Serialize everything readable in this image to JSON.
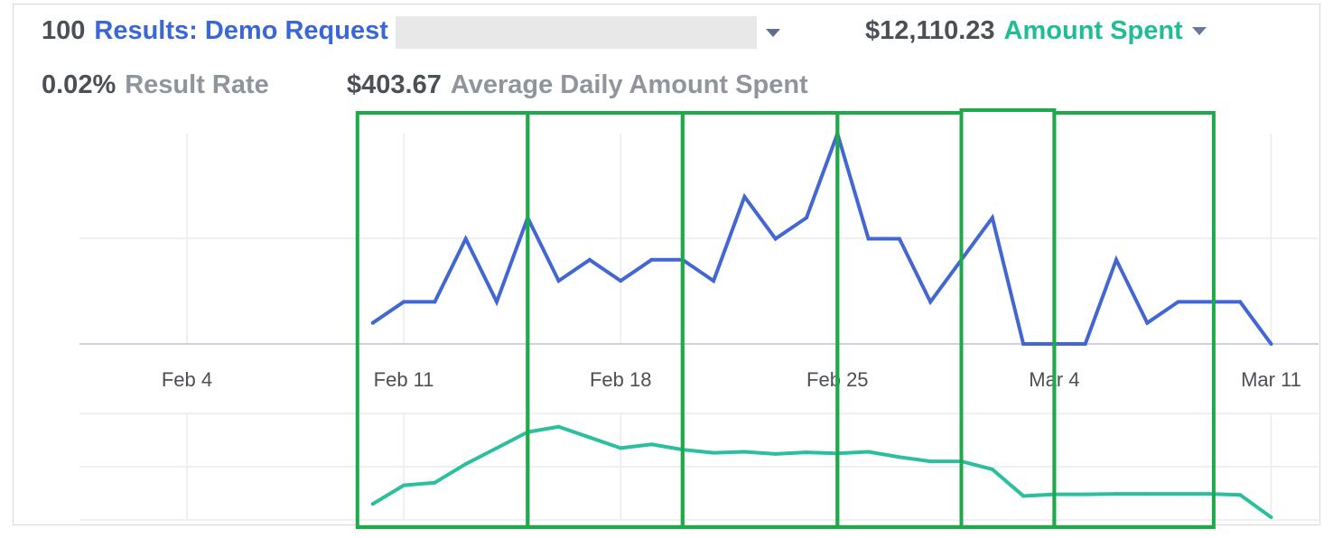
{
  "header": {
    "results_count": "100",
    "results_label": "Results: Demo Request",
    "amount_spent_value": "$12,110.23",
    "amount_spent_label": "Amount Spent",
    "result_rate_value": "0.02%",
    "result_rate_label": "Result Rate",
    "avg_daily_value": "$403.67",
    "avg_daily_label": "Average Daily Amount Spent"
  },
  "colors": {
    "results": "#4267d2",
    "amount_spent": "#2bbf9e",
    "highlight": "#1faa4a"
  },
  "chart_data": {
    "type": "line",
    "x_tick_labels": [
      "Feb 4",
      "Feb 11",
      "Feb 18",
      "Feb 25",
      "Mar 4",
      "Mar 11"
    ],
    "x_start_label": "Feb 10",
    "x_end_label": "Mar 11",
    "grid": true,
    "series": [
      {
        "name": "Results: Demo Request",
        "values": [
          1,
          2,
          2,
          5,
          2,
          6,
          3,
          4,
          3,
          4,
          4,
          3,
          7,
          5,
          6,
          10,
          5,
          5,
          2,
          4,
          6,
          0,
          0,
          0,
          4,
          1,
          2,
          2,
          2,
          0
        ]
      },
      {
        "name": "Amount Spent",
        "values": [
          0.3,
          0.65,
          0.7,
          1.05,
          1.35,
          1.65,
          1.75,
          1.55,
          1.35,
          1.42,
          1.32,
          1.26,
          1.28,
          1.24,
          1.27,
          1.25,
          1.28,
          1.18,
          1.1,
          1.1,
          0.95,
          0.45,
          0.48,
          0.48,
          0.49,
          0.49,
          0.49,
          0.49,
          0.47,
          0.05
        ]
      }
    ],
    "highlight_boxes": [
      [
        "Feb 10",
        "Feb 15"
      ],
      [
        "Feb 15",
        "Feb 20"
      ],
      [
        "Feb 20",
        "Feb 25"
      ],
      [
        "Feb 25",
        "Mar 1"
      ],
      [
        "Mar 1",
        "Mar 4"
      ],
      [
        "Mar 4",
        "Mar 9"
      ]
    ]
  }
}
